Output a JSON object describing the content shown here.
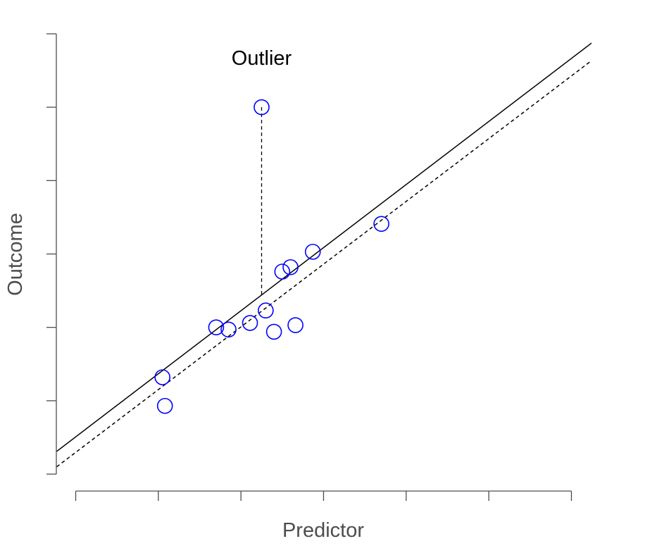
{
  "chart_data": {
    "type": "scatter",
    "xlabel": "Predictor",
    "ylabel": "Outcome",
    "xlim": [
      0,
      6
    ],
    "ylim": [
      0,
      6
    ],
    "x_ticks": [
      0,
      1,
      2,
      3,
      4,
      5,
      6
    ],
    "y_ticks": [
      0,
      1,
      2,
      3,
      4,
      5,
      6
    ],
    "tick_labels_shown": false,
    "grid": false,
    "legend": "none",
    "point_color": "#0000ff",
    "points": [
      {
        "x": 1.05,
        "y": 1.32
      },
      {
        "x": 1.08,
        "y": 0.93
      },
      {
        "x": 1.7,
        "y": 2.0
      },
      {
        "x": 1.85,
        "y": 1.97
      },
      {
        "x": 2.11,
        "y": 2.06
      },
      {
        "x": 2.3,
        "y": 2.23
      },
      {
        "x": 2.4,
        "y": 1.94
      },
      {
        "x": 2.5,
        "y": 2.76
      },
      {
        "x": 2.6,
        "y": 2.82
      },
      {
        "x": 2.66,
        "y": 2.03
      },
      {
        "x": 2.87,
        "y": 3.03
      },
      {
        "x": 3.7,
        "y": 3.41
      },
      {
        "x": 2.25,
        "y": 5.0
      }
    ],
    "lines": [
      {
        "style": "solid",
        "color": "#000000",
        "from": [
          -0.23,
          0.31
        ],
        "to": [
          6.25,
          5.88
        ]
      },
      {
        "style": "dashed",
        "color": "#000000",
        "from": [
          -0.23,
          0.1
        ],
        "to": [
          6.25,
          5.64
        ]
      }
    ],
    "residual_segment": {
      "x": 2.25,
      "y_from": 5.0,
      "y_to": 2.42,
      "style": "dashed"
    },
    "annotations": [
      {
        "text": "Outlier",
        "x": 2.25,
        "y": 5.58
      }
    ]
  }
}
